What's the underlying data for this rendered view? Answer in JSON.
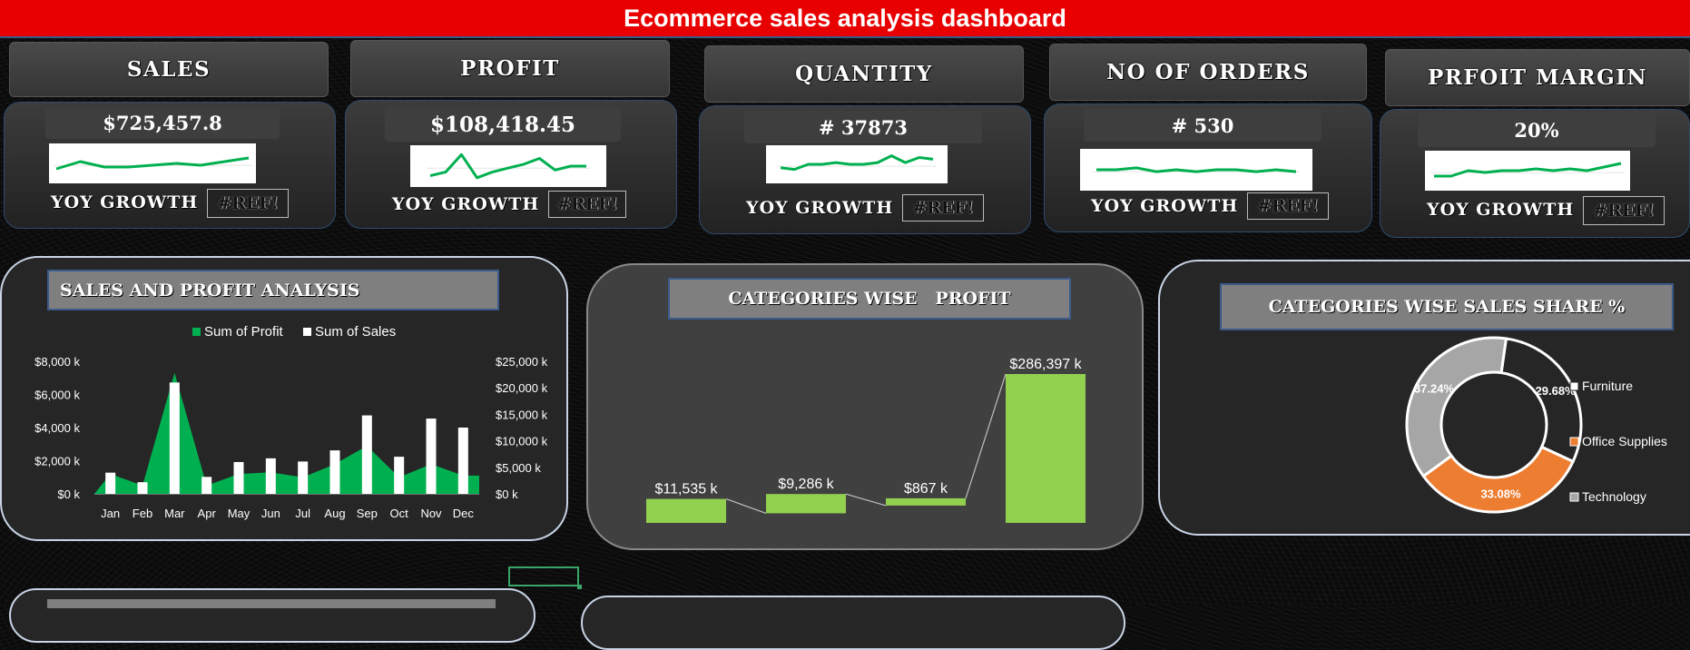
{
  "header": {
    "title": "Ecommerce sales analysis dashboard"
  },
  "kpis": [
    {
      "label": "SALES",
      "value": "$725,457.8",
      "growth_label": "YOY GROWTH",
      "growth_value": "#REF!"
    },
    {
      "label": "PROFIT",
      "value": "$108,418.45",
      "growth_label": "YOY GROWTH",
      "growth_value": "#REF!"
    },
    {
      "label": "QUANTITY",
      "value": "# 37873",
      "growth_label": "YOY GROWTH",
      "growth_value": "#REF!"
    },
    {
      "label": "NO OF ORDERS",
      "value": "# 530",
      "growth_label": "YOY GROWTH",
      "growth_value": "#REF!"
    },
    {
      "label": "PRFOIT MARGIN",
      "value": "20%",
      "growth_label": "YOY GROWTH",
      "growth_value": "#REF!"
    }
  ],
  "colors": {
    "title_bar": "#e80000",
    "profit_green": "#00b050",
    "waterfall_green": "#92d050",
    "sales_white": "#ffffff",
    "office_orange": "#ed7d31",
    "technology_gray": "#a6a6a6"
  },
  "chart_data": [
    {
      "type": "line",
      "series": [
        {
          "values": [
            5,
            9,
            6,
            6,
            7,
            8,
            7,
            9,
            11
          ]
        },
        {
          "values": [
            3,
            5,
            14,
            2,
            5,
            7,
            9,
            12,
            6,
            8,
            8
          ]
        },
        {
          "values": [
            6,
            5,
            8,
            8,
            9,
            8,
            8,
            9,
            13,
            9,
            12,
            11
          ]
        },
        {
          "values": [
            8,
            8,
            9,
            7,
            8,
            7,
            8,
            8,
            7,
            8,
            7
          ]
        },
        {
          "values": [
            5,
            5,
            8,
            7,
            8,
            8,
            9,
            8,
            9,
            8,
            10,
            12
          ]
        }
      ]
    },
    {
      "type": "bar",
      "title": "SALES AND PROFIT ANALYSIS",
      "categories": [
        "Jan",
        "Feb",
        "Mar",
        "Apr",
        "May",
        "Jun",
        "Jul",
        "Aug",
        "Sep",
        "Oct",
        "Nov",
        "Dec"
      ],
      "series": [
        {
          "name": "Sum of Profit",
          "type": "area",
          "axis": "left",
          "values": [
            1200,
            500,
            7300,
            500,
            1200,
            1300,
            1000,
            1800,
            2900,
            1000,
            1800,
            1100
          ]
        },
        {
          "name": "Sum of Sales",
          "type": "bar",
          "axis": "right",
          "values": [
            4000,
            2200,
            21000,
            3200,
            6000,
            6700,
            6100,
            8200,
            14800,
            7000,
            14200,
            12500
          ]
        }
      ],
      "y_left": {
        "ticks": [
          "$0 k",
          "$2,000 k",
          "$4,000 k",
          "$6,000 k",
          "$8,000 k"
        ],
        "ylim": [
          0,
          8000
        ]
      },
      "y_right": {
        "ticks": [
          "$0 k",
          "$5,000 k",
          "$10,000 k",
          "$15,000 k",
          "$20,000 k",
          "$25,000 k"
        ],
        "ylim": [
          0,
          25000
        ]
      },
      "legend": "top"
    },
    {
      "type": "bar",
      "subtype": "waterfall",
      "title": "CATEGORIES WISE   PROFIT",
      "values": [
        11535,
        9286,
        867,
        286397
      ],
      "labels": [
        "$11,535 k",
        "$9,286 k",
        "$867 k",
        "$286,397 k"
      ]
    },
    {
      "type": "pie",
      "subtype": "donut",
      "title": "CATEGORIES WISE SALES SHARE %",
      "categories": [
        "Furniture",
        "Office Supplies",
        "Technology"
      ],
      "values": [
        29.68,
        33.08,
        37.24
      ],
      "labels": [
        "29.68%",
        "33.08%",
        "37.24%"
      ],
      "legend": "right"
    }
  ]
}
